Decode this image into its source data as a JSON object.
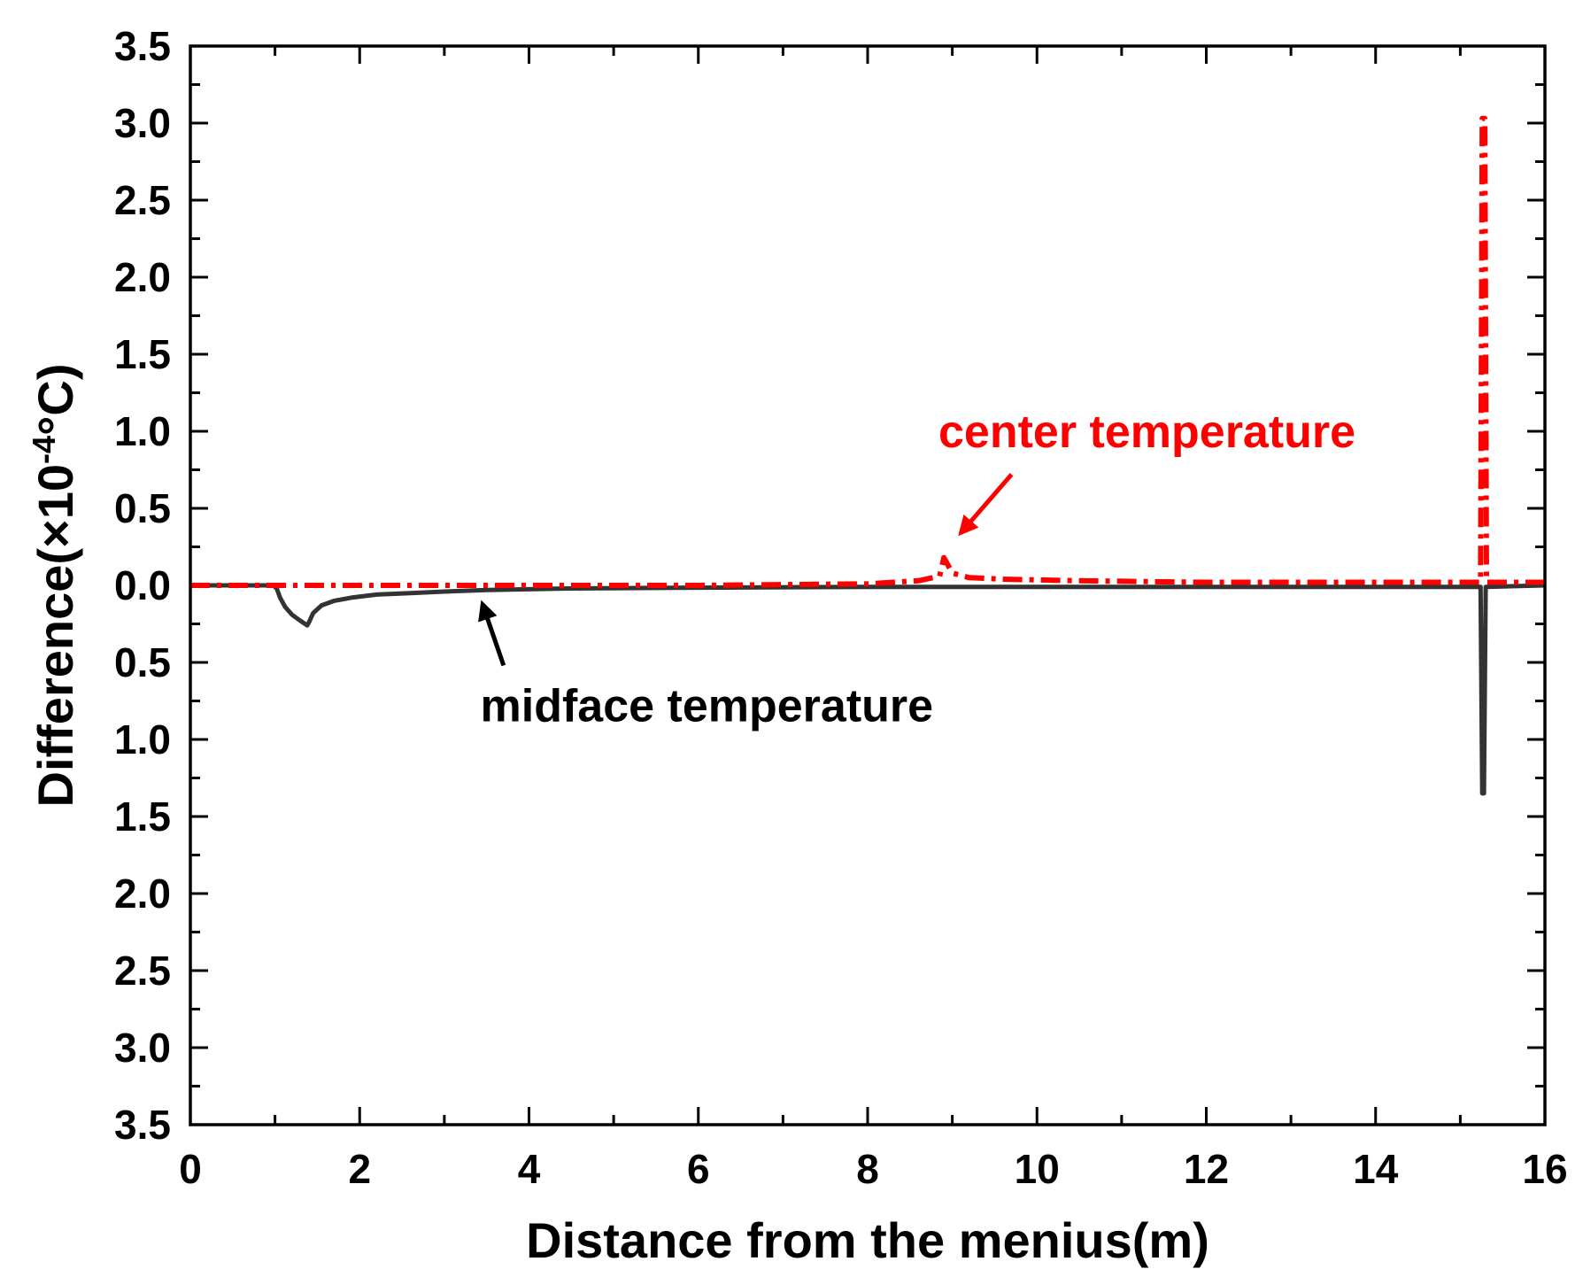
{
  "chart_data": {
    "type": "line",
    "title": "",
    "xlabel": "Distance from the menius(m)",
    "ylabel_prefix": "Difference(×10",
    "ylabel_exponent": "-4",
    "ylabel_suffix": "°C)",
    "xlim": [
      0,
      16
    ],
    "ylim": [
      -3.5,
      3.5
    ],
    "x_ticks": [
      0,
      2,
      4,
      6,
      8,
      10,
      12,
      14,
      16
    ],
    "x_tick_labels": [
      "0",
      "2",
      "4",
      "6",
      "8",
      "10",
      "12",
      "14",
      "16"
    ],
    "y_ticks": [
      3.5,
      3.0,
      2.5,
      2.0,
      1.5,
      1.0,
      0.5,
      0.0,
      -0.5,
      -1.0,
      -1.5,
      -2.0,
      -2.5,
      -3.0,
      -3.5
    ],
    "y_tick_labels": [
      "3.5",
      "3.0",
      "2.5",
      "2.0",
      "1.5",
      "1.0",
      "0.5",
      "0.0",
      "0.5",
      "1.0",
      "1.5",
      "2.0",
      "2.5",
      "3.0",
      "3.5"
    ],
    "grid": false,
    "series": [
      {
        "name": "midface temperature",
        "color": "#333333",
        "style": "solid",
        "points": [
          [
            0,
            0.0
          ],
          [
            0.98,
            0.0
          ],
          [
            1.02,
            -0.02
          ],
          [
            1.06,
            -0.08
          ],
          [
            1.12,
            -0.14
          ],
          [
            1.2,
            -0.19
          ],
          [
            1.3,
            -0.23
          ],
          [
            1.38,
            -0.26
          ],
          [
            1.4,
            -0.24
          ],
          [
            1.45,
            -0.18
          ],
          [
            1.55,
            -0.13
          ],
          [
            1.7,
            -0.1
          ],
          [
            1.9,
            -0.08
          ],
          [
            2.2,
            -0.06
          ],
          [
            2.6,
            -0.05
          ],
          [
            3.0,
            -0.04
          ],
          [
            3.5,
            -0.03
          ],
          [
            4.5,
            -0.02
          ],
          [
            6.0,
            -0.015
          ],
          [
            8.0,
            -0.01
          ],
          [
            10.0,
            -0.01
          ],
          [
            12.0,
            -0.01
          ],
          [
            14.0,
            -0.01
          ],
          [
            15.24,
            -0.01
          ],
          [
            15.26,
            -1.35
          ],
          [
            15.28,
            -1.35
          ],
          [
            15.3,
            -0.01
          ],
          [
            16,
            0.0
          ]
        ]
      },
      {
        "name": "center temperature",
        "color": "#ff0000",
        "style": "dashdot",
        "points": [
          [
            0,
            0.0
          ],
          [
            4.0,
            0.0
          ],
          [
            6.0,
            0.0
          ],
          [
            8.0,
            0.01
          ],
          [
            8.6,
            0.03
          ],
          [
            8.85,
            0.06
          ],
          [
            8.9,
            0.18
          ],
          [
            8.94,
            0.14
          ],
          [
            9.0,
            0.08
          ],
          [
            9.2,
            0.05
          ],
          [
            9.6,
            0.04
          ],
          [
            10.5,
            0.03
          ],
          [
            12.0,
            0.02
          ],
          [
            14.0,
            0.02
          ],
          [
            15.24,
            0.02
          ],
          [
            15.26,
            3.03
          ],
          [
            15.29,
            3.03
          ],
          [
            15.31,
            0.02
          ],
          [
            16,
            0.02
          ]
        ]
      }
    ],
    "annotations": [
      {
        "text": "center temperature",
        "color": "#ff0000",
        "text_at": [
          11.3,
          1.0
        ],
        "arrow_from": [
          9.7,
          0.72
        ],
        "arrow_to": [
          9.1,
          0.34
        ]
      },
      {
        "text": "midface temperature",
        "color": "#000000",
        "text_at": [
          6.1,
          -0.78
        ],
        "arrow_from": [
          3.7,
          -0.52
        ],
        "arrow_to": [
          3.45,
          -0.12
        ]
      }
    ]
  }
}
